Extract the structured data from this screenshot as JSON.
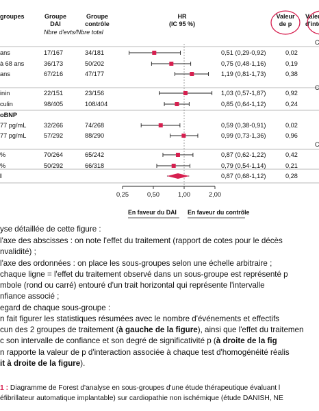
{
  "header": {
    "col_subgroups": "groupes",
    "col_dai": "Groupe\nDAI",
    "col_control": "Groupe\ncontrôle",
    "col_counts_sub": "Nbre d'evts/Nbre total",
    "col_hr": "HR\n(IC 95 %)",
    "col_p": "Valeur\nde p",
    "col_p_interaction": "Valeur\nd'inte"
  },
  "chart_data": {
    "type": "forest",
    "x_axis": {
      "scale": "log",
      "ticks": [
        0.25,
        0.5,
        1.0,
        2.0
      ],
      "tick_labels": [
        "0,25",
        "0,50",
        "1,00",
        "2,00"
      ],
      "range": [
        0.25,
        2.0
      ],
      "label_left": "En faveur du DAI",
      "label_right": "En faveur du contrôle"
    },
    "rows": [
      {
        "label": "ans",
        "bold": false,
        "dai": "17/167",
        "control": "34/181",
        "hr": 0.51,
        "lo": 0.29,
        "hi": 0.92,
        "ci_text": "0,51 (0,29-0,92)",
        "p": "0,02",
        "p_int": "",
        "marker": "square"
      },
      {
        "label": "à 68 ans",
        "bold": false,
        "dai": "36/173",
        "control": "50/202",
        "hr": 0.75,
        "lo": 0.48,
        "hi": 1.16,
        "ci_text": "0,75 (0,48-1,16)",
        "p": "0,19",
        "p_int": "",
        "marker": "square"
      },
      {
        "label": "ans",
        "bold": false,
        "dai": "67/216",
        "control": "47/177",
        "hr": 1.19,
        "lo": 0.81,
        "hi": 1.73,
        "ci_text": "1,19 (0,81-1,73)",
        "p": "0,38",
        "p_int": "",
        "marker": "square"
      },
      {
        "label": "inin",
        "bold": false,
        "dai": "22/151",
        "control": "23/156",
        "hr": 1.03,
        "lo": 0.57,
        "hi": 1.87,
        "ci_text": "1,03 (0,57-1,87)",
        "p": "0,92",
        "p_int": "",
        "marker": "square"
      },
      {
        "label": "culin",
        "bold": false,
        "dai": "98/405",
        "control": "108/404",
        "hr": 0.85,
        "lo": 0.64,
        "hi": 1.12,
        "ci_text": "0,85 (0,64-1,12)",
        "p": "0,24",
        "p_int": "",
        "marker": "square"
      },
      {
        "label": "oBNP",
        "bold": true,
        "dai": "",
        "control": "",
        "hr": null,
        "lo": null,
        "hi": null,
        "ci_text": "",
        "p": "",
        "p_int": "",
        "marker": "none"
      },
      {
        "label": "77 pg/mL",
        "bold": false,
        "dai": "32/266",
        "control": "74/268",
        "hr": 0.59,
        "lo": 0.38,
        "hi": 0.91,
        "ci_text": "0,59 (0,38-0,91)",
        "p": "0,02",
        "p_int": "",
        "marker": "square"
      },
      {
        "label": "77 pg/mL",
        "bold": false,
        "dai": "57/292",
        "control": "88/290",
        "hr": 0.99,
        "lo": 0.73,
        "hi": 1.36,
        "ci_text": "0,99 (0,73-1,36)",
        "p": "0,96",
        "p_int": "",
        "marker": "square"
      },
      {
        "label": "%",
        "bold": false,
        "dai": "70/264",
        "control": "65/242",
        "hr": 0.87,
        "lo": 0.62,
        "hi": 1.22,
        "ci_text": "0,87 (0,62-1,22)",
        "p": "0,42",
        "p_int": "",
        "marker": "square"
      },
      {
        "label": "%",
        "bold": false,
        "dai": "50/292",
        "control": "66/318",
        "hr": 0.79,
        "lo": 0.54,
        "hi": 1.14,
        "ci_text": "0,79 (0,54-1,14)",
        "p": "0,21",
        "p_int": "",
        "marker": "square"
      },
      {
        "label": "l",
        "bold": true,
        "dai": "",
        "control": "",
        "hr": 0.87,
        "lo": 0.68,
        "hi": 1.12,
        "ci_text": "0,87 (0,68-1,12)",
        "p": "0,28",
        "p_int": "",
        "marker": "diamond"
      }
    ],
    "marker_color": "#d61f4f"
  },
  "colors": {
    "accent": "#d61f4f",
    "rule": "#777777"
  },
  "text": {
    "p1": "yse détaillée de cette figure :",
    "p2a": "l'axe des abscisses : on note l'effet du traitement (rapport de cotes pour le décès",
    "p2b": "nvalidité) ;",
    "p3": "l'axe des ordonnées : on place les sous-groupes selon une échelle arbitraire ;",
    "p4a": "chaque ligne = l'effet du traitement observé dans un sous-groupe est représenté p",
    "p4b": "mbole (rond ou carré) entouré d'un trait horizontal qui représente l'intervalle",
    "p4c": "nfiance associé ;",
    "p5": "egard de chaque sous-groupe :",
    "p6a": "n fait figurer les statistiques résumées avec le nombre d'événements et effectifs",
    "p6b_1": "cun des 2 groupes de traitement (",
    "p6b_2": "à gauche de la figure",
    "p6b_3": "), ainsi que l'effet du traitemen",
    "p6c_1": "c son intervalle de confiance et son degré de significativité p (",
    "p6c_2": "à droite de la fig",
    "p7a": "n rapporte la valeur de p d'interaction associée à chaque test d'homogénéité réalis",
    "p7b_1": "it à droite de la figure",
    "p7b_2": ").",
    "cap1_1": "1 :",
    "cap1_2": " Diagramme de Forest d'analyse en sous-groupes d'une étude thérapeutique évaluant l",
    "cap2": "éfibrillateur automatique implantable) sur cardiopathie non ischémique (étude DANISH, NE",
    "pint_marker": "C"
  }
}
